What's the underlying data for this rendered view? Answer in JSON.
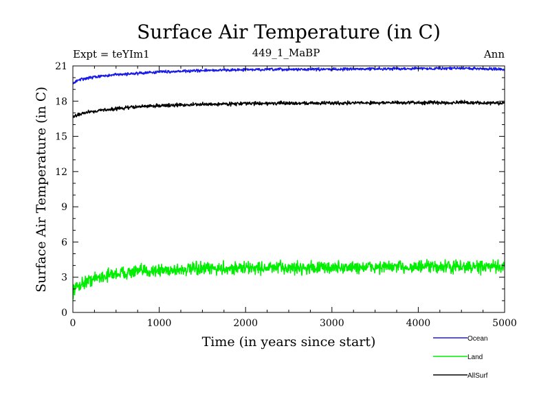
{
  "chart_data": {
    "type": "line",
    "title": "Surface Air Temperature (in C)",
    "subtitle_left": "Expt = teYIm1",
    "subtitle_center": "449_1_MaBP",
    "subtitle_right": "Ann",
    "xlabel": "Time (in years since start)",
    "ylabel": "Surface Air Temperature (in C)",
    "xlim": [
      0,
      5000
    ],
    "ylim": [
      0,
      21
    ],
    "x_ticks": [
      0,
      1000,
      2000,
      3000,
      4000,
      5000
    ],
    "y_ticks": [
      0,
      3,
      6,
      9,
      12,
      15,
      18,
      21
    ],
    "grid": false,
    "legend_position": "bottom-right",
    "series": [
      {
        "name": "Ocean",
        "color": "#1a1ae6",
        "noise": 0.08,
        "x": [
          0,
          50,
          100,
          200,
          300,
          500,
          700,
          1000,
          1500,
          2000,
          2500,
          3000,
          3500,
          4000,
          4500,
          5000
        ],
        "values": [
          19.5,
          19.75,
          19.85,
          20.0,
          20.1,
          20.25,
          20.35,
          20.5,
          20.6,
          20.68,
          20.7,
          20.72,
          20.75,
          20.78,
          20.8,
          20.72
        ]
      },
      {
        "name": "Land",
        "color": "#00ee00",
        "noise": 0.38,
        "x": [
          0,
          50,
          100,
          200,
          300,
          500,
          700,
          1000,
          1500,
          2000,
          2500,
          3000,
          3500,
          4000,
          4500,
          5000
        ],
        "values": [
          1.9,
          2.2,
          2.45,
          2.75,
          3.0,
          3.3,
          3.45,
          3.6,
          3.7,
          3.8,
          3.8,
          3.82,
          3.85,
          3.88,
          3.88,
          3.85
        ]
      },
      {
        "name": "AllSurf",
        "color": "#000000",
        "noise": 0.1,
        "x": [
          0,
          50,
          100,
          200,
          300,
          500,
          700,
          1000,
          1500,
          2000,
          2500,
          3000,
          3500,
          4000,
          4500,
          5000
        ],
        "values": [
          16.6,
          16.85,
          16.95,
          17.1,
          17.2,
          17.35,
          17.5,
          17.62,
          17.72,
          17.8,
          17.82,
          17.84,
          17.86,
          17.87,
          17.88,
          17.82
        ]
      }
    ]
  }
}
